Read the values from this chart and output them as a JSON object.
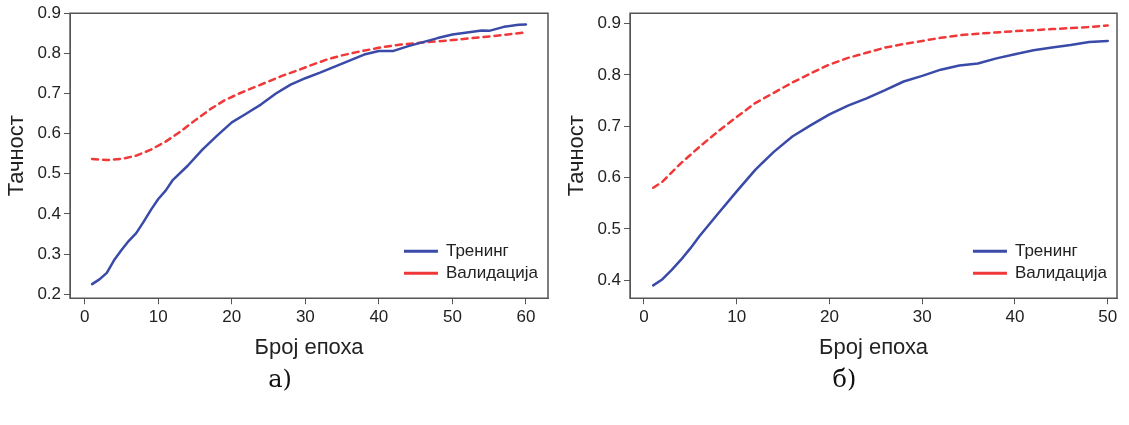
{
  "chart_data": [
    {
      "type": "line",
      "xlabel": "Број епоха",
      "ylabel": "Тачност",
      "annotations": [
        "а)"
      ],
      "xlim": [
        -2,
        63
      ],
      "xticks": [
        0,
        10,
        20,
        30,
        40,
        50,
        60
      ],
      "ylim": [
        0.19,
        0.9
      ],
      "yticks": [
        0.2,
        0.3,
        0.4,
        0.5,
        0.6,
        0.7,
        0.8,
        0.9
      ],
      "grid": false,
      "legend": "bottom right",
      "marker": "none",
      "series": [
        {
          "name": "Тренинг",
          "color": "#3a4aa8",
          "line_style": "solid",
          "x": [
            1,
            2,
            3,
            4,
            5,
            6,
            7,
            8,
            9,
            10,
            11,
            12,
            14,
            16,
            18,
            20,
            22,
            24,
            26,
            28,
            30,
            32,
            34,
            36,
            38,
            40,
            42,
            44,
            46,
            48,
            50,
            52,
            54,
            55,
            57,
            59,
            60
          ],
          "values": [
            0.225,
            0.237,
            0.253,
            0.285,
            0.31,
            0.333,
            0.352,
            0.38,
            0.41,
            0.437,
            0.458,
            0.485,
            0.52,
            0.56,
            0.595,
            0.628,
            0.65,
            0.673,
            0.7,
            0.722,
            0.738,
            0.752,
            0.767,
            0.782,
            0.797,
            0.806,
            0.806,
            0.818,
            0.828,
            0.838,
            0.847,
            0.852,
            0.857,
            0.856,
            0.866,
            0.871,
            0.872
          ]
        },
        {
          "name": "Валидација",
          "color": "#f03838",
          "line_style": "dashed",
          "x": [
            1,
            3,
            5,
            7,
            9,
            11,
            13,
            15,
            17,
            19,
            21,
            23,
            25,
            27,
            29,
            31,
            33,
            35,
            37,
            40,
            43,
            46,
            50,
            55,
            60
          ],
          "values": [
            0.537,
            0.534,
            0.537,
            0.545,
            0.56,
            0.58,
            0.605,
            0.633,
            0.66,
            0.683,
            0.7,
            0.715,
            0.73,
            0.745,
            0.758,
            0.772,
            0.785,
            0.795,
            0.803,
            0.814,
            0.822,
            0.827,
            0.833,
            0.842,
            0.852
          ]
        }
      ]
    },
    {
      "type": "line",
      "xlabel": "Број епоха",
      "ylabel": "Тачност",
      "annotations": [
        "б)"
      ],
      "xlim": [
        -1.5,
        51
      ],
      "xticks": [
        0,
        10,
        20,
        30,
        40,
        50
      ],
      "ylim": [
        0.365,
        0.92
      ],
      "yticks": [
        0.4,
        0.5,
        0.6,
        0.7,
        0.8,
        0.9
      ],
      "grid": false,
      "legend": "bottom right",
      "marker": "none",
      "series": [
        {
          "name": "Тренинг",
          "color": "#3a4aa8",
          "line_style": "solid",
          "x": [
            1,
            2,
            3,
            4,
            5,
            6,
            8,
            10,
            12,
            14,
            16,
            18,
            20,
            22,
            24,
            26,
            28,
            30,
            32,
            34,
            36,
            38,
            40,
            42,
            44,
            46,
            48,
            50
          ],
          "values": [
            0.39,
            0.402,
            0.42,
            0.44,
            0.462,
            0.486,
            0.53,
            0.573,
            0.615,
            0.65,
            0.68,
            0.702,
            0.723,
            0.74,
            0.754,
            0.77,
            0.787,
            0.798,
            0.81,
            0.818,
            0.822,
            0.832,
            0.84,
            0.848,
            0.853,
            0.858,
            0.864,
            0.866
          ]
        },
        {
          "name": "Валидација",
          "color": "#f03838",
          "line_style": "dashed",
          "x": [
            1,
            2,
            3,
            4,
            6,
            8,
            10,
            12,
            14,
            16,
            18,
            20,
            22,
            24,
            26,
            28,
            30,
            32,
            34,
            36,
            40,
            44,
            48,
            50
          ],
          "values": [
            0.58,
            0.592,
            0.61,
            0.628,
            0.66,
            0.69,
            0.718,
            0.745,
            0.765,
            0.785,
            0.803,
            0.82,
            0.833,
            0.843,
            0.853,
            0.86,
            0.866,
            0.872,
            0.877,
            0.88,
            0.885,
            0.889,
            0.893,
            0.896
          ]
        }
      ]
    }
  ]
}
